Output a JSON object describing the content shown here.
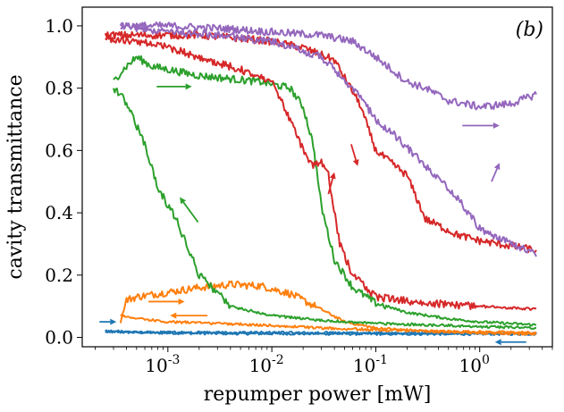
{
  "chart_data": {
    "type": "line",
    "title": "",
    "panel_label": "(b)",
    "xlabel": "repumper power [mW]",
    "ylabel": "cavity transmittance",
    "x_scale": "log",
    "xlim": [
      0.00015,
      5
    ],
    "ylim": [
      -0.03,
      1.06
    ],
    "x_ticks": [
      {
        "value": 0.001,
        "base": "10",
        "exp": "-3"
      },
      {
        "value": 0.01,
        "base": "10",
        "exp": "-2"
      },
      {
        "value": 0.1,
        "base": "10",
        "exp": "-1"
      },
      {
        "value": 1,
        "label": "10",
        "exp": "0"
      }
    ],
    "y_ticks": [
      {
        "value": 0.0,
        "label": "0.0"
      },
      {
        "value": 0.2,
        "label": "0.2"
      },
      {
        "value": 0.4,
        "label": "0.4"
      },
      {
        "value": 0.6,
        "label": "0.6"
      },
      {
        "value": 0.8,
        "label": "0.8"
      },
      {
        "value": 1.0,
        "label": "1.0"
      }
    ],
    "series": [
      {
        "name": "blue-up",
        "color": "#1f77b4",
        "x": [
          0.00025,
          0.0005,
          0.001,
          0.005,
          0.02,
          0.1,
          0.5,
          3.5
        ],
        "y": [
          0.018,
          0.016,
          0.014,
          0.012,
          0.012,
          0.011,
          0.011,
          0.011
        ]
      },
      {
        "name": "blue-down",
        "color": "#1f77b4",
        "x": [
          3.5,
          1,
          0.1,
          0.01,
          0.001,
          0.00025
        ],
        "y": [
          0.013,
          0.013,
          0.014,
          0.015,
          0.016,
          0.02
        ]
      },
      {
        "name": "orange-up",
        "color": "#ff7f0e",
        "x": [
          0.00035,
          0.0004,
          0.0005,
          0.001,
          0.002,
          0.004,
          0.008,
          0.015,
          0.03,
          0.05,
          0.1,
          0.3,
          1,
          3.5
        ],
        "y": [
          0.05,
          0.12,
          0.13,
          0.145,
          0.16,
          0.17,
          0.165,
          0.14,
          0.09,
          0.05,
          0.03,
          0.02,
          0.018,
          0.015
        ]
      },
      {
        "name": "orange-down",
        "color": "#ff7f0e",
        "x": [
          3.5,
          1,
          0.3,
          0.1,
          0.03,
          0.01,
          0.003,
          0.001,
          0.0005,
          0.00035
        ],
        "y": [
          0.01,
          0.015,
          0.02,
          0.025,
          0.03,
          0.038,
          0.045,
          0.05,
          0.06,
          0.07
        ]
      },
      {
        "name": "green-up",
        "color": "#2ca02c",
        "x": [
          0.0003,
          0.00035,
          0.0004,
          0.0005,
          0.0007,
          0.001,
          0.002,
          0.004,
          0.008,
          0.015,
          0.02,
          0.025,
          0.03,
          0.04,
          0.06,
          0.1,
          0.2,
          0.5,
          1,
          3.5
        ],
        "y": [
          0.82,
          0.85,
          0.87,
          0.9,
          0.87,
          0.86,
          0.84,
          0.83,
          0.82,
          0.8,
          0.74,
          0.62,
          0.42,
          0.25,
          0.16,
          0.11,
          0.08,
          0.06,
          0.05,
          0.04
        ]
      },
      {
        "name": "green-down",
        "color": "#2ca02c",
        "x": [
          3.5,
          1,
          0.3,
          0.1,
          0.03,
          0.01,
          0.004,
          0.002,
          0.0012,
          0.0008,
          0.0006,
          0.0004,
          0.00035,
          0.0003
        ],
        "y": [
          0.03,
          0.035,
          0.04,
          0.045,
          0.055,
          0.07,
          0.1,
          0.2,
          0.38,
          0.48,
          0.62,
          0.75,
          0.78,
          0.8
        ]
      },
      {
        "name": "red-up",
        "color": "#d62728",
        "x": [
          0.00025,
          0.0005,
          0.001,
          0.002,
          0.005,
          0.01,
          0.02,
          0.04,
          0.07,
          0.1,
          0.2,
          0.3,
          0.6,
          1,
          3.5
        ],
        "y": [
          0.97,
          0.97,
          0.97,
          0.97,
          0.96,
          0.95,
          0.93,
          0.89,
          0.75,
          0.6,
          0.52,
          0.38,
          0.33,
          0.31,
          0.28
        ]
      },
      {
        "name": "red-down",
        "color": "#d62728",
        "x": [
          3.5,
          1,
          0.3,
          0.1,
          0.06,
          0.045,
          0.035,
          0.03,
          0.025,
          0.02,
          0.015,
          0.01,
          0.005,
          0.002,
          0.001,
          0.0005,
          0.00025
        ],
        "y": [
          0.09,
          0.1,
          0.11,
          0.13,
          0.2,
          0.3,
          0.52,
          0.56,
          0.55,
          0.6,
          0.7,
          0.82,
          0.86,
          0.9,
          0.93,
          0.95,
          0.96
        ]
      },
      {
        "name": "purple-up",
        "color": "#9467bd",
        "x": [
          0.00035,
          0.001,
          0.004,
          0.01,
          0.03,
          0.06,
          0.1,
          0.2,
          0.3,
          0.5,
          1,
          2,
          3.5
        ],
        "y": [
          1.0,
          1.0,
          0.99,
          0.98,
          0.97,
          0.95,
          0.9,
          0.82,
          0.8,
          0.76,
          0.74,
          0.75,
          0.78
        ]
      },
      {
        "name": "purple-down",
        "color": "#9467bd",
        "x": [
          3.5,
          2,
          1,
          0.6,
          0.3,
          0.15,
          0.1,
          0.06,
          0.03,
          0.01,
          0.003,
          0.001,
          0.00035
        ],
        "y": [
          0.27,
          0.3,
          0.35,
          0.45,
          0.55,
          0.65,
          0.7,
          0.8,
          0.9,
          0.95,
          0.97,
          0.98,
          1.0
        ]
      }
    ],
    "arrows": [
      {
        "color": "#1f77b4",
        "x1": 0.00022,
        "y1": 0.05,
        "x2": 0.00032,
        "y2": 0.05
      },
      {
        "color": "#1f77b4",
        "x1": 2.8,
        "y1": -0.015,
        "x2": 1.4,
        "y2": -0.015
      },
      {
        "color": "#ff7f0e",
        "x1": 0.00065,
        "y1": 0.115,
        "x2": 0.00145,
        "y2": 0.115
      },
      {
        "color": "#ff7f0e",
        "x1": 0.0024,
        "y1": 0.07,
        "x2": 0.00105,
        "y2": 0.07
      },
      {
        "color": "#2ca02c",
        "x1": 0.00078,
        "y1": 0.805,
        "x2": 0.0017,
        "y2": 0.805
      },
      {
        "color": "#2ca02c",
        "x1": 0.00195,
        "y1": 0.37,
        "x2": 0.0013,
        "y2": 0.45
      },
      {
        "color": "#d62728",
        "x1": 0.058,
        "y1": 0.62,
        "x2": 0.067,
        "y2": 0.55
      },
      {
        "color": "#d62728",
        "x1": 0.035,
        "y1": 0.46,
        "x2": 0.04,
        "y2": 0.53
      },
      {
        "color": "#9467bd",
        "x1": 0.68,
        "y1": 0.68,
        "x2": 1.55,
        "y2": 0.68
      },
      {
        "color": "#9467bd",
        "x1": 1.3,
        "y1": 0.5,
        "x2": 1.55,
        "y2": 0.56
      }
    ]
  }
}
